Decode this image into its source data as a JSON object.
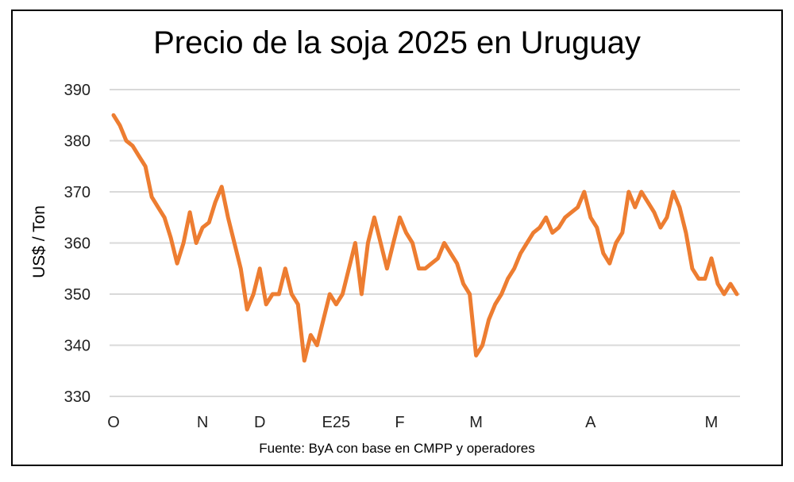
{
  "chart_data": {
    "type": "line",
    "title": "Precio de la soja 2025 en Uruguay",
    "ylabel": "US$ / Ton",
    "xlabel": "",
    "source": "Fuente: ByA con base en CMPP y operadores",
    "ylim": [
      330,
      390
    ],
    "yticks": [
      330,
      340,
      350,
      360,
      370,
      380,
      390
    ],
    "grid": true,
    "line_color": "#ED7D31",
    "xticks": [
      {
        "index": 0,
        "label": "O"
      },
      {
        "index": 14,
        "label": "N"
      },
      {
        "index": 23,
        "label": "D"
      },
      {
        "index": 35,
        "label": "E25"
      },
      {
        "index": 45,
        "label": "F"
      },
      {
        "index": 57,
        "label": "M"
      },
      {
        "index": 75,
        "label": "A"
      },
      {
        "index": 94,
        "label": "M"
      }
    ],
    "values": [
      385,
      383,
      380,
      379,
      377,
      375,
      369,
      367,
      365,
      361,
      356,
      360,
      366,
      360,
      363,
      364,
      368,
      371,
      365,
      360,
      355,
      347,
      350,
      355,
      348,
      350,
      350,
      355,
      350,
      348,
      337,
      342,
      340,
      345,
      350,
      348,
      350,
      355,
      360,
      350,
      360,
      365,
      360,
      355,
      360,
      365,
      362,
      360,
      355,
      355,
      356,
      357,
      360,
      358,
      356,
      352,
      350,
      338,
      340,
      345,
      348,
      350,
      353,
      355,
      358,
      360,
      362,
      363,
      365,
      362,
      363,
      365,
      366,
      367,
      370,
      365,
      363,
      358,
      356,
      360,
      362,
      370,
      367,
      370,
      368,
      366,
      363,
      365,
      370,
      367,
      362,
      355,
      353,
      353,
      357,
      352,
      350,
      352,
      350
    ]
  }
}
